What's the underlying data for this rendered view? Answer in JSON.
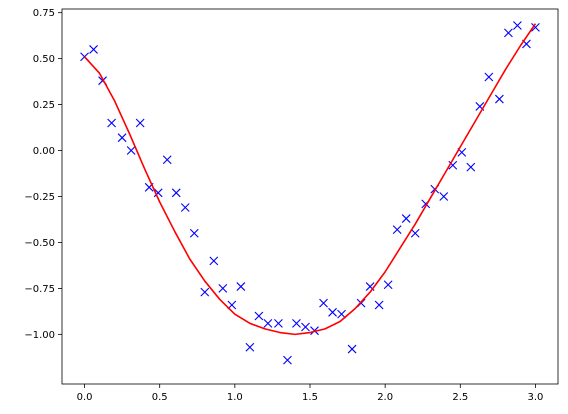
{
  "chart_data": {
    "type": "scatter",
    "title": "",
    "xlabel": "",
    "ylabel": "",
    "xlim": [
      -0.15,
      3.15
    ],
    "ylim": [
      -1.27,
      0.77
    ],
    "xticks": [
      0.0,
      0.5,
      1.0,
      1.5,
      2.0,
      2.5,
      3.0
    ],
    "xtick_labels": [
      "0.0",
      "0.5",
      "1.0",
      "1.5",
      "2.0",
      "2.5",
      "3.0"
    ],
    "yticks": [
      0.75,
      0.5,
      0.25,
      0.0,
      -0.25,
      -0.5,
      -0.75,
      -1.0
    ],
    "ytick_labels": [
      "0.75",
      "0.50",
      "0.25",
      "0.00",
      "−0.25",
      "−0.50",
      "−0.75",
      "−1.00"
    ],
    "grid": false,
    "series": [
      {
        "kind": "scatter",
        "marker": "x",
        "color": "#0000ff",
        "points": [
          [
            0.0,
            0.51
          ],
          [
            0.06,
            0.55
          ],
          [
            0.12,
            0.38
          ],
          [
            0.18,
            0.15
          ],
          [
            0.25,
            0.07
          ],
          [
            0.31,
            0.0
          ],
          [
            0.37,
            0.15
          ],
          [
            0.43,
            -0.2
          ],
          [
            0.49,
            -0.23
          ],
          [
            0.55,
            -0.05
          ],
          [
            0.61,
            -0.23
          ],
          [
            0.67,
            -0.31
          ],
          [
            0.73,
            -0.45
          ],
          [
            0.8,
            -0.77
          ],
          [
            0.86,
            -0.6
          ],
          [
            0.92,
            -0.75
          ],
          [
            0.98,
            -0.84
          ],
          [
            1.04,
            -0.74
          ],
          [
            1.1,
            -1.07
          ],
          [
            1.16,
            -0.9
          ],
          [
            1.22,
            -0.94
          ],
          [
            1.29,
            -0.94
          ],
          [
            1.35,
            -1.14
          ],
          [
            1.41,
            -0.94
          ],
          [
            1.47,
            -0.96
          ],
          [
            1.53,
            -0.98
          ],
          [
            1.59,
            -0.83
          ],
          [
            1.65,
            -0.88
          ],
          [
            1.71,
            -0.89
          ],
          [
            1.78,
            -1.08
          ],
          [
            1.84,
            -0.83
          ],
          [
            1.9,
            -0.74
          ],
          [
            1.96,
            -0.84
          ],
          [
            2.02,
            -0.73
          ],
          [
            2.08,
            -0.43
          ],
          [
            2.14,
            -0.37
          ],
          [
            2.2,
            -0.45
          ],
          [
            2.27,
            -0.29
          ],
          [
            2.33,
            -0.21
          ],
          [
            2.39,
            -0.25
          ],
          [
            2.45,
            -0.08
          ],
          [
            2.51,
            -0.01
          ],
          [
            2.57,
            -0.09
          ],
          [
            2.63,
            0.24
          ],
          [
            2.69,
            0.4
          ],
          [
            2.76,
            0.28
          ],
          [
            2.82,
            0.64
          ],
          [
            2.88,
            0.68
          ],
          [
            2.94,
            0.58
          ],
          [
            3.0,
            0.67
          ]
        ]
      },
      {
        "kind": "line",
        "color": "#ff0000",
        "points": [
          [
            0.0,
            0.51
          ],
          [
            0.1,
            0.42
          ],
          [
            0.2,
            0.27
          ],
          [
            0.3,
            0.09
          ],
          [
            0.4,
            -0.1
          ],
          [
            0.5,
            -0.28
          ],
          [
            0.6,
            -0.44
          ],
          [
            0.7,
            -0.59
          ],
          [
            0.8,
            -0.71
          ],
          [
            0.9,
            -0.81
          ],
          [
            1.0,
            -0.89
          ],
          [
            1.1,
            -0.94
          ],
          [
            1.2,
            -0.97
          ],
          [
            1.3,
            -0.99
          ],
          [
            1.4,
            -1.0
          ],
          [
            1.5,
            -0.99
          ],
          [
            1.6,
            -0.97
          ],
          [
            1.7,
            -0.93
          ],
          [
            1.8,
            -0.86
          ],
          [
            1.9,
            -0.77
          ],
          [
            2.0,
            -0.66
          ],
          [
            2.1,
            -0.53
          ],
          [
            2.2,
            -0.4
          ],
          [
            2.3,
            -0.26
          ],
          [
            2.4,
            -0.12
          ],
          [
            2.5,
            0.02
          ],
          [
            2.6,
            0.16
          ],
          [
            2.7,
            0.3
          ],
          [
            2.8,
            0.44
          ],
          [
            2.9,
            0.57
          ],
          [
            3.0,
            0.69
          ]
        ]
      }
    ]
  }
}
